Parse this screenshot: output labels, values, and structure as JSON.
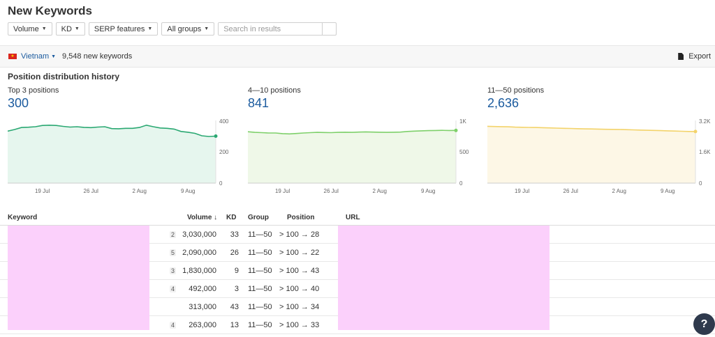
{
  "page": {
    "title": "New Keywords"
  },
  "filters": {
    "volume": "Volume",
    "kd": "KD",
    "serp": "SERP features",
    "groups": "All groups",
    "search_placeholder": "Search in results"
  },
  "bar": {
    "country": "Vietnam",
    "count": "9,548 new keywords",
    "export": "Export",
    "flag_color": "#da251d"
  },
  "distribution": {
    "title": "Position distribution history",
    "charts": [
      {
        "label": "Top 3 positions",
        "value": "300",
        "color": "#2aa872",
        "fill": "#e6f6ee",
        "ylabels": [
          "400",
          "200",
          "0"
        ]
      },
      {
        "label": "4—10 positions",
        "value": "841",
        "color": "#7ed06a",
        "fill": "#eff8e8",
        "ylabels": [
          "1K",
          "500",
          "0"
        ]
      },
      {
        "label": "11—50 positions",
        "value": "2,636",
        "color": "#f3d36a",
        "fill": "#fdf7e6",
        "ylabels": [
          "3.2K",
          "1.6K",
          "0"
        ]
      }
    ],
    "xlabels": [
      "19 Jul",
      "26 Jul",
      "2 Aug",
      "9 Aug"
    ]
  },
  "chart_data": [
    {
      "type": "area",
      "title": "Top 3 positions",
      "ylim": [
        0,
        400
      ],
      "x": [
        "14 Jul",
        "15 Jul",
        "16 Jul",
        "17 Jul",
        "18 Jul",
        "19 Jul",
        "20 Jul",
        "21 Jul",
        "22 Jul",
        "23 Jul",
        "24 Jul",
        "25 Jul",
        "26 Jul",
        "27 Jul",
        "28 Jul",
        "29 Jul",
        "30 Jul",
        "31 Jul",
        "1 Aug",
        "2 Aug",
        "3 Aug",
        "4 Aug",
        "5 Aug",
        "6 Aug",
        "7 Aug",
        "8 Aug",
        "9 Aug",
        "10 Aug",
        "11 Aug",
        "12 Aug",
        "13 Aug"
      ],
      "values": [
        332,
        342,
        355,
        357,
        360,
        368,
        370,
        368,
        362,
        358,
        360,
        356,
        354,
        358,
        360,
        348,
        347,
        350,
        350,
        355,
        370,
        360,
        352,
        350,
        345,
        330,
        325,
        318,
        302,
        298,
        300
      ]
    },
    {
      "type": "area",
      "title": "4—10 positions",
      "ylim": [
        0,
        1000
      ],
      "x": [
        "14 Jul",
        "15 Jul",
        "16 Jul",
        "17 Jul",
        "18 Jul",
        "19 Jul",
        "20 Jul",
        "21 Jul",
        "22 Jul",
        "23 Jul",
        "24 Jul",
        "25 Jul",
        "26 Jul",
        "27 Jul",
        "28 Jul",
        "29 Jul",
        "30 Jul",
        "31 Jul",
        "1 Aug",
        "2 Aug",
        "3 Aug",
        "4 Aug",
        "5 Aug",
        "6 Aug",
        "7 Aug",
        "8 Aug",
        "9 Aug",
        "10 Aug",
        "11 Aug",
        "12 Aug",
        "13 Aug"
      ],
      "values": [
        820,
        810,
        805,
        800,
        800,
        790,
        785,
        792,
        800,
        805,
        810,
        808,
        805,
        810,
        812,
        810,
        815,
        818,
        815,
        812,
        810,
        812,
        815,
        825,
        830,
        835,
        838,
        840,
        842,
        840,
        841
      ]
    },
    {
      "type": "area",
      "title": "11—50 positions",
      "ylim": [
        0,
        3200
      ],
      "x": [
        "14 Jul",
        "15 Jul",
        "16 Jul",
        "17 Jul",
        "18 Jul",
        "19 Jul",
        "20 Jul",
        "21 Jul",
        "22 Jul",
        "23 Jul",
        "24 Jul",
        "25 Jul",
        "26 Jul",
        "27 Jul",
        "28 Jul",
        "29 Jul",
        "30 Jul",
        "31 Jul",
        "1 Aug",
        "2 Aug",
        "3 Aug",
        "4 Aug",
        "5 Aug",
        "6 Aug",
        "7 Aug",
        "8 Aug",
        "9 Aug",
        "10 Aug",
        "11 Aug",
        "12 Aug",
        "13 Aug"
      ],
      "values": [
        2900,
        2890,
        2885,
        2875,
        2860,
        2850,
        2845,
        2840,
        2830,
        2820,
        2810,
        2800,
        2790,
        2780,
        2770,
        2765,
        2760,
        2750,
        2745,
        2740,
        2730,
        2720,
        2710,
        2700,
        2690,
        2680,
        2670,
        2660,
        2650,
        2640,
        2636
      ]
    }
  ],
  "table": {
    "headers": {
      "keyword": "Keyword",
      "volume": "Volume",
      "sort_arrow": "↓",
      "kd": "KD",
      "group": "Group",
      "position": "Position",
      "url": "URL"
    },
    "rows": [
      {
        "rank": "2",
        "volume": "3,030,000",
        "kd": "33",
        "group": "11—50",
        "position": "> 100 → 28"
      },
      {
        "rank": "5",
        "volume": "2,090,000",
        "kd": "26",
        "group": "11—50",
        "position": "> 100 → 22"
      },
      {
        "rank": "3",
        "volume": "1,830,000",
        "kd": "9",
        "group": "11—50",
        "position": "> 100 → 43"
      },
      {
        "rank": "4",
        "volume": "492,000",
        "kd": "3",
        "group": "11—50",
        "position": "> 100 → 40"
      },
      {
        "rank": "",
        "volume": "313,000",
        "kd": "43",
        "group": "11—50",
        "position": "> 100 → 34"
      },
      {
        "rank": "4",
        "volume": "263,000",
        "kd": "13",
        "group": "11—50",
        "position": "> 100 → 33"
      }
    ]
  },
  "help": {
    "label": "?"
  }
}
